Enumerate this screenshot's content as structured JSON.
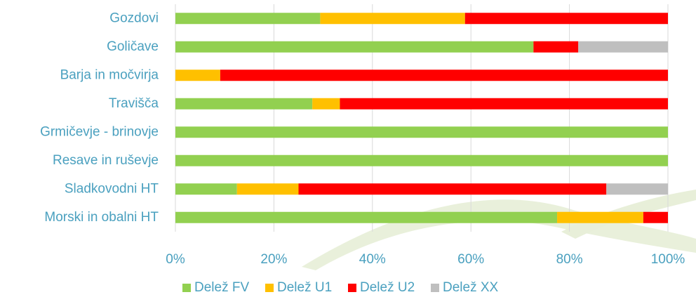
{
  "chart_data": {
    "type": "stacked-barh",
    "categories": [
      "Gozdovi",
      "Goličave",
      "Barja in močvirja",
      "Travišča",
      "Grmičevje - brinovje",
      "Resave in ruševje",
      "Sladkovodni HT",
      "Morski in obalni HT"
    ],
    "series": [
      {
        "name": "Delež FV",
        "color": "#92d050",
        "values": [
          29.4,
          72.7,
          0,
          27.8,
          100,
          100,
          12.5,
          77.5
        ]
      },
      {
        "name": "Delež U1",
        "color": "#ffc000",
        "values": [
          29.4,
          0,
          9.1,
          5.6,
          0,
          0,
          12.5,
          17.5
        ]
      },
      {
        "name": "Delež U2",
        "color": "#ff0000",
        "values": [
          41.2,
          9.1,
          90.9,
          66.6,
          0,
          0,
          62.5,
          5
        ]
      },
      {
        "name": "Delež XX",
        "color": "#bfbfbf",
        "values": [
          0,
          18.2,
          0,
          0,
          0,
          0,
          12.5,
          0
        ]
      }
    ],
    "xlim": [
      0,
      100
    ],
    "xticks": [
      {
        "value": 0,
        "label": "0%"
      },
      {
        "value": 20,
        "label": "20%"
      },
      {
        "value": 40,
        "label": "40%"
      },
      {
        "value": 60,
        "label": "60%"
      },
      {
        "value": 80,
        "label": "80%"
      },
      {
        "value": 100,
        "label": "100%"
      }
    ],
    "grid": true,
    "legend": "bottom"
  }
}
